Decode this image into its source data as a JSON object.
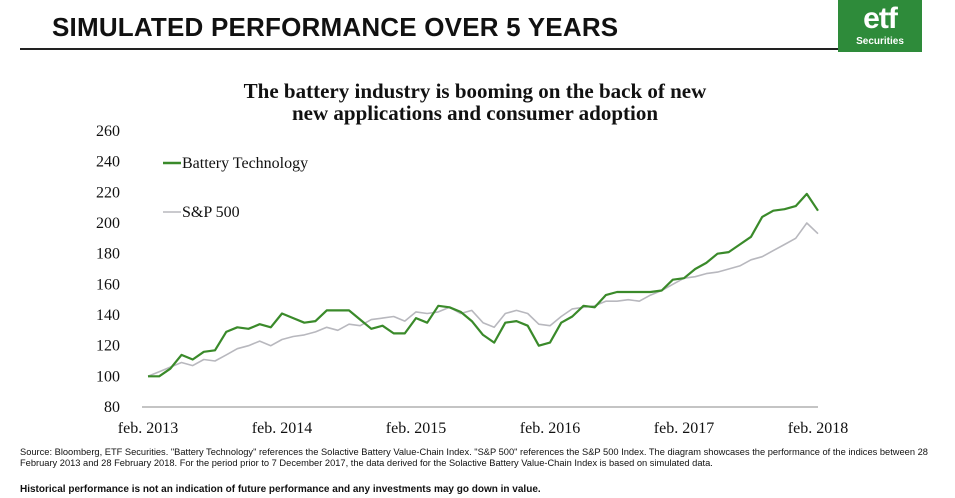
{
  "header": {
    "title": "SIMULATED PERFORMANCE OVER 5 YEARS",
    "logo_main": "etf",
    "logo_sub": "Securities",
    "brand_color": "#2e8b3a"
  },
  "chart_data": {
    "type": "line",
    "title": "The battery industry is booming on the back of new new applications and consumer adoption",
    "title_lines": [
      "The battery industry is booming on the back of new",
      "new applications and consumer adoption"
    ],
    "xlabel": "",
    "ylabel": "",
    "ylim": [
      80,
      260
    ],
    "yticks": [
      80,
      100,
      120,
      140,
      160,
      180,
      200,
      220,
      240,
      260
    ],
    "xlim": [
      0,
      60
    ],
    "xticks": [
      {
        "x": 0,
        "label": "feb. 2013"
      },
      {
        "x": 12,
        "label": "feb. 2014"
      },
      {
        "x": 24,
        "label": "feb. 2015"
      },
      {
        "x": 36,
        "label": "feb. 2016"
      },
      {
        "x": 48,
        "label": "feb. 2017"
      },
      {
        "x": 60,
        "label": "feb. 2018"
      }
    ],
    "grid": false,
    "legend_position": "top-left",
    "series": [
      {
        "name": "Battery Technology",
        "color": "#3a8a2a",
        "values": [
          100,
          100,
          105,
          114,
          111,
          116,
          117,
          129,
          132,
          131,
          134,
          132,
          141,
          138,
          135,
          136,
          143,
          143,
          143,
          137,
          131,
          133,
          128,
          128,
          138,
          135,
          146,
          145,
          142,
          136,
          127,
          122,
          135,
          136,
          133,
          120,
          122,
          135,
          139,
          146,
          145,
          153,
          155,
          155,
          155,
          155,
          156,
          163,
          164,
          170,
          174,
          180,
          181,
          186,
          191,
          204,
          208,
          209,
          211,
          219,
          208
        ]
      },
      {
        "name": "S&P 500",
        "color": "#b8b8be",
        "values": [
          100,
          103,
          106,
          109,
          107,
          111,
          110,
          114,
          118,
          120,
          123,
          120,
          124,
          126,
          127,
          129,
          132,
          130,
          134,
          133,
          137,
          138,
          139,
          136,
          142,
          141,
          142,
          145,
          141,
          143,
          135,
          132,
          141,
          143,
          141,
          134,
          133,
          139,
          144,
          145,
          146,
          149,
          149,
          150,
          149,
          153,
          156,
          160,
          164,
          165,
          167,
          168,
          170,
          172,
          176,
          178,
          182,
          186,
          190,
          200,
          193
        ]
      }
    ]
  },
  "footer": {
    "source": "Source: Bloomberg, ETF Securities. \"Battery Technology\" references the Solactive Battery Value-Chain Index. \"S&P 500\" references the S&P 500 Index. The diagram showcases the performance of the indices between 28 February 2013 and 28 February 2018. For the period prior to 7 December 2017, the data derived for the Solactive Battery Value-Chain Index is based on simulated data.",
    "disclaimer": "Historical performance is not an indication of future performance and any investments may go down in value."
  }
}
